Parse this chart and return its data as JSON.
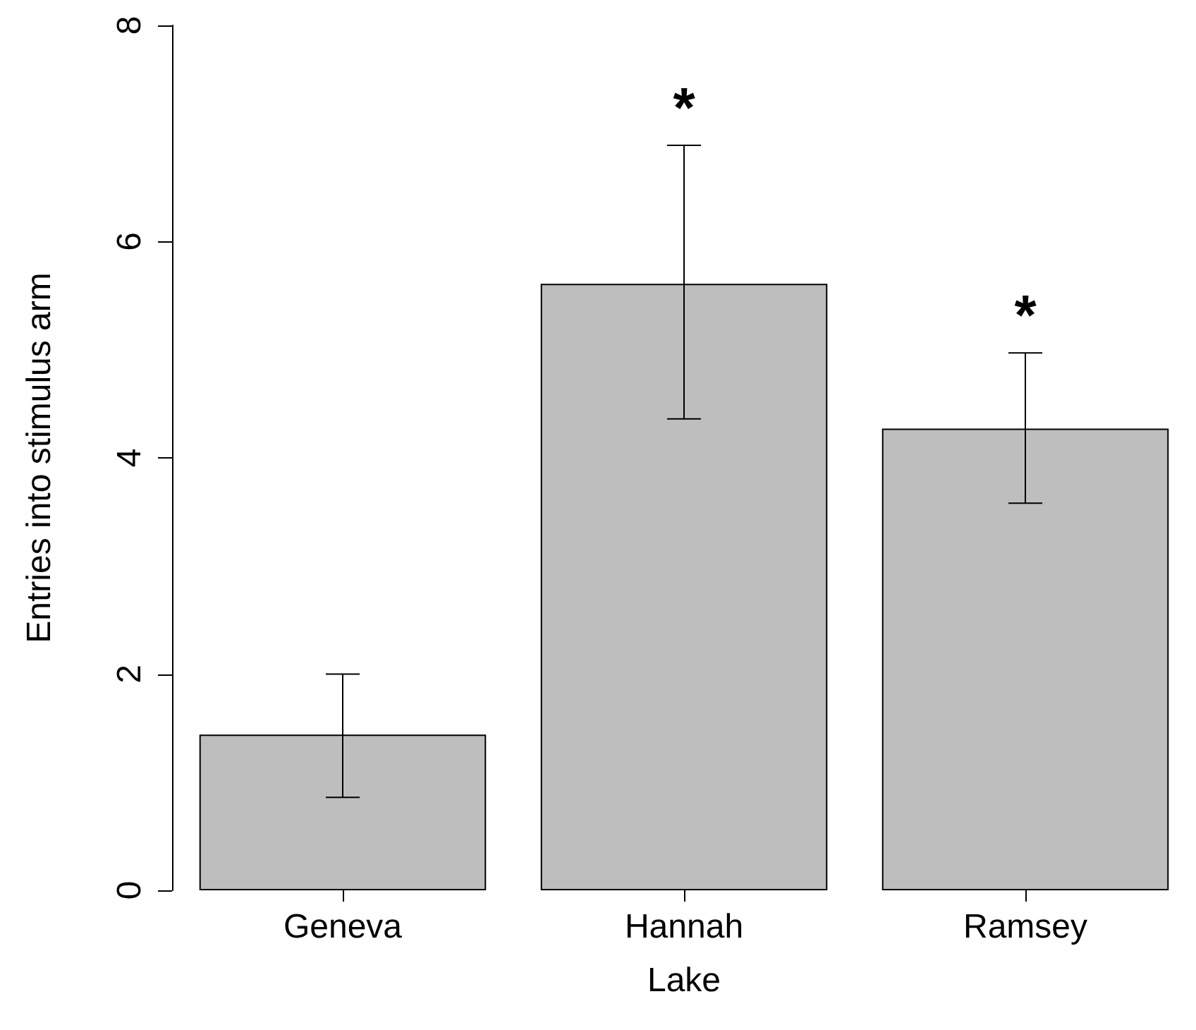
{
  "chart_data": {
    "type": "bar",
    "xlabel": "Lake",
    "ylabel": "Entries into stimulus arm",
    "categories": [
      "Geneva",
      "Hannah",
      "Ramsey"
    ],
    "values": [
      1.44,
      5.61,
      4.27
    ],
    "errors": [
      [
        0.86,
        2.0
      ],
      [
        4.36,
        6.89
      ],
      [
        3.58,
        4.97
      ]
    ],
    "color": "#bebebe",
    "ylim": [
      0,
      8
    ],
    "yticks": [
      0,
      2,
      4,
      6,
      8
    ],
    "value_labels": [
      null,
      "*",
      "*"
    ]
  }
}
